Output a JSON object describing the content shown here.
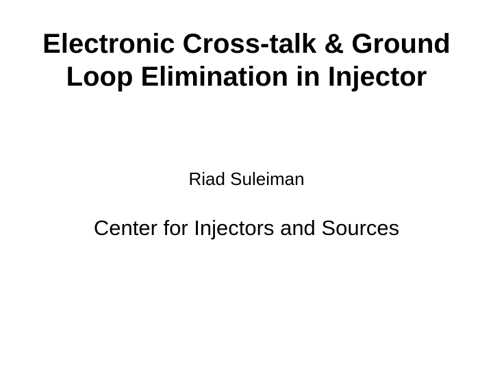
{
  "slide": {
    "title": "Electronic Cross-talk & Ground Loop Elimination in Injector",
    "author": "Riad Suleiman",
    "affiliation": "Center for Injectors and Sources",
    "title_fontsize": 40,
    "author_fontsize": 26,
    "affiliation_fontsize": 31,
    "background_color": "#ffffff",
    "text_color": "#000000"
  }
}
